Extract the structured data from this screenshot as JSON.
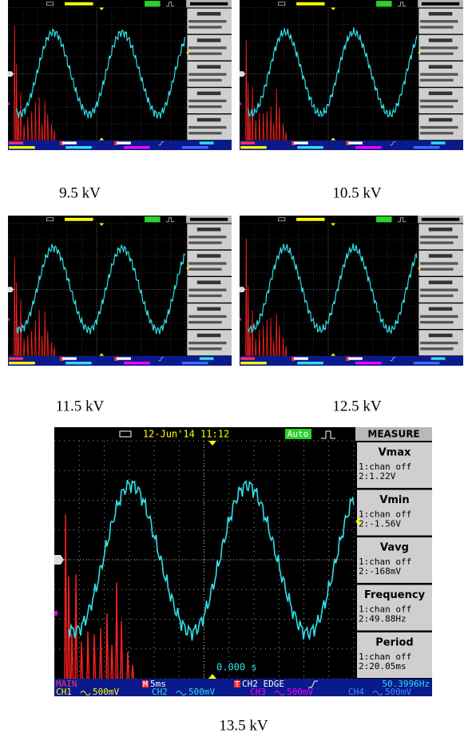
{
  "figure": {
    "panels": [
      {
        "caption": "9.5 kV"
      },
      {
        "caption": "10.5 kV"
      },
      {
        "caption": "11.5 kV"
      },
      {
        "caption": "12.5 kV"
      },
      {
        "caption": "13.5 kV"
      }
    ],
    "scope": {
      "date": "12-Jun'14 11:12",
      "mode": "Auto",
      "menu_title": "MEASURE",
      "measures": [
        {
          "name": "Vmax",
          "lines": [
            "1:chan off",
            "2:1.22V"
          ]
        },
        {
          "name": "Vmin",
          "lines": [
            "1:chan off",
            "2:-1.56V"
          ]
        },
        {
          "name": "Vavg",
          "lines": [
            "1:chan off",
            "2:-168mV"
          ]
        },
        {
          "name": "Frequency",
          "lines": [
            "1:chan off",
            "2:49.88Hz"
          ]
        },
        {
          "name": "Period",
          "lines": [
            "1:chan off",
            "2:20.05ms"
          ]
        }
      ],
      "time_offset": "0.000 s",
      "timebase_label": "MAIN",
      "timebase_badge": "M",
      "timebase": "5ms",
      "trigger_badge": "T",
      "trigger": "CH2 EDGE",
      "frequency": "50.3996Hz",
      "channels": [
        {
          "name": "CH1",
          "scale": "500mV"
        },
        {
          "name": "CH2",
          "scale": "500mV"
        },
        {
          "name": "CH3",
          "scale": "500mV"
        },
        {
          "name": "CH4",
          "scale": "500mV"
        }
      ]
    }
  }
}
